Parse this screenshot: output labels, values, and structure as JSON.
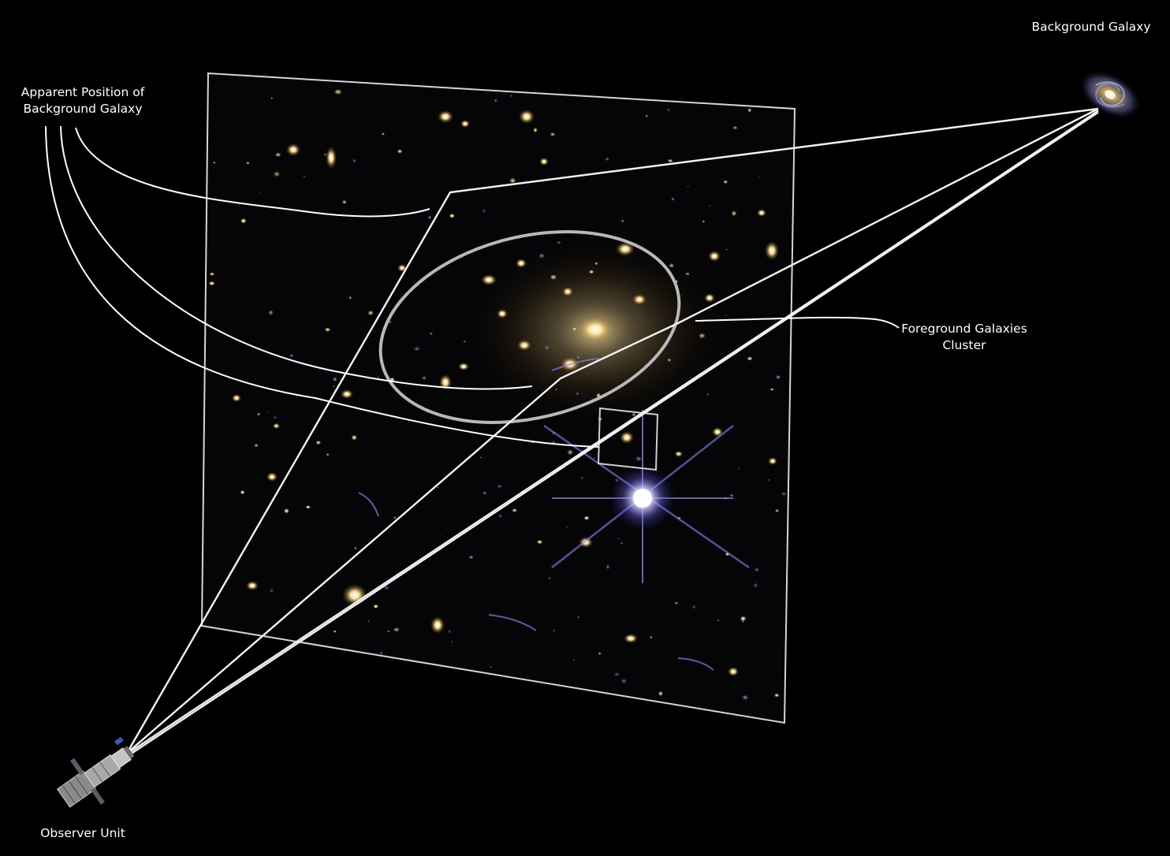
{
  "labels": {
    "background_galaxy": "Background Galaxy",
    "apparent_position": [
      "Apparent Position of",
      "Background Galaxy"
    ],
    "foreground_cluster": [
      "Foreground Galaxies",
      "Cluster"
    ],
    "observer_unit": "Observer Unit"
  },
  "colors": {
    "background": "#000000",
    "line": "#f2f2f2",
    "cluster_outline": "#b8b8b8",
    "galaxy_glow": "#f3d98a",
    "blue_star": "#c9c9ff"
  }
}
